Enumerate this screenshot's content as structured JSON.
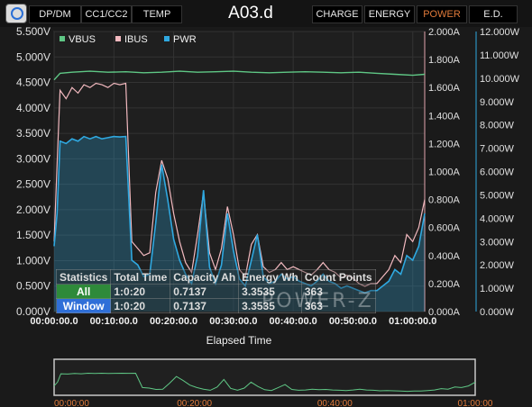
{
  "tabs_left": [
    "DP/DM",
    "CC1/CC2",
    "TEMP"
  ],
  "title": "A03.d",
  "tabs_right": [
    "CHARGE",
    "ENERGY",
    "POWER",
    "E.D."
  ],
  "active_tab": "POWER",
  "colors": {
    "vbus": "#5fc785",
    "ibus": "#f2b9bf",
    "pwr": "#2fa8e0",
    "accent": "#e07a3a"
  },
  "chart_data": {
    "type": "line",
    "xlabel": "Elapsed Time",
    "x_ticks": [
      "00:00:00.0",
      "00:10:00.0",
      "00:20:00.0",
      "00:30:00.0",
      "00:40:00.0",
      "00:50:00.0",
      "01:00:00.0"
    ],
    "y_left_ticks": [
      "0.000V",
      "0.500V",
      "1.000V",
      "1.500V",
      "2.000V",
      "2.500V",
      "3.000V",
      "3.500V",
      "4.000V",
      "4.500V",
      "5.000V",
      "5.500V"
    ],
    "y_mid_ticks": [
      "0.000A",
      "0.200A",
      "0.400A",
      "0.600A",
      "0.800A",
      "1.000A",
      "1.200A",
      "1.400A",
      "1.600A",
      "1.800A",
      "2.000A"
    ],
    "y_right_ticks": [
      "0.000W",
      "1.000W",
      "2.000W",
      "3.000W",
      "4.000W",
      "5.000W",
      "6.000W",
      "7.000W",
      "8.000W",
      "9.000W",
      "10.000W",
      "11.000W",
      "12.000W"
    ],
    "ylim_left": [
      0,
      5.5
    ],
    "ylim_mid": [
      0,
      2.0
    ],
    "ylim_right": [
      0,
      12
    ],
    "xlim_min": [
      0,
      62
    ],
    "legend": [
      "VBUS",
      "IBUS",
      "PWR"
    ],
    "series": [
      {
        "name": "VBUS",
        "axis": "left",
        "x": [
          0,
          1,
          3,
          6,
          9,
          12,
          15,
          18,
          21,
          24,
          27,
          30,
          33,
          36,
          39,
          42,
          45,
          48,
          51,
          54,
          57,
          60,
          62
        ],
        "y": [
          4.55,
          4.68,
          4.7,
          4.72,
          4.7,
          4.71,
          4.69,
          4.7,
          4.72,
          4.7,
          4.71,
          4.72,
          4.7,
          4.69,
          4.7,
          4.71,
          4.7,
          4.69,
          4.7,
          4.68,
          4.66,
          4.64,
          4.66
        ]
      },
      {
        "name": "IBUS",
        "axis": "mid",
        "x": [
          0,
          0.5,
          1,
          2,
          3,
          4,
          5,
          6,
          7,
          8,
          9,
          10,
          11,
          12,
          13,
          14,
          15,
          16,
          17,
          18,
          19,
          20,
          21,
          22,
          23,
          24,
          25,
          26,
          27,
          28,
          29,
          30,
          31,
          32,
          33,
          34,
          35,
          36,
          37,
          38,
          39,
          40,
          41,
          42,
          43,
          44,
          45,
          46,
          47,
          48,
          49,
          50,
          51,
          52,
          53,
          54,
          55,
          56,
          57,
          58,
          59,
          60,
          61,
          62
        ],
        "y": [
          0.5,
          1.05,
          1.58,
          1.52,
          1.6,
          1.56,
          1.62,
          1.6,
          1.63,
          1.62,
          1.6,
          1.63,
          1.62,
          1.63,
          0.5,
          0.45,
          0.4,
          0.42,
          0.85,
          1.08,
          0.95,
          0.7,
          0.5,
          0.35,
          0.28,
          0.55,
          0.85,
          0.42,
          0.3,
          0.45,
          0.75,
          0.55,
          0.3,
          0.25,
          0.48,
          0.55,
          0.32,
          0.28,
          0.3,
          0.35,
          0.3,
          0.32,
          0.3,
          0.28,
          0.26,
          0.3,
          0.35,
          0.3,
          0.28,
          0.24,
          0.26,
          0.24,
          0.2,
          0.18,
          0.2,
          0.2,
          0.25,
          0.3,
          0.4,
          0.35,
          0.55,
          0.5,
          0.6,
          0.8
        ]
      },
      {
        "name": "PWR",
        "axis": "right",
        "x": [
          0,
          0.5,
          1,
          2,
          3,
          4,
          5,
          6,
          7,
          8,
          9,
          10,
          11,
          12,
          13,
          14,
          15,
          16,
          17,
          18,
          19,
          20,
          21,
          22,
          23,
          24,
          25,
          26,
          27,
          28,
          29,
          30,
          31,
          32,
          33,
          34,
          35,
          36,
          37,
          38,
          39,
          40,
          41,
          42,
          43,
          44,
          45,
          46,
          47,
          48,
          49,
          50,
          51,
          52,
          53,
          54,
          55,
          56,
          57,
          58,
          59,
          60,
          61,
          62
        ],
        "y": [
          2.8,
          4.2,
          7.3,
          7.2,
          7.4,
          7.3,
          7.5,
          7.4,
          7.5,
          7.4,
          7.45,
          7.5,
          7.48,
          7.5,
          2.2,
          2.0,
          1.5,
          1.6,
          3.8,
          6.3,
          4.8,
          3.1,
          2.2,
          1.6,
          1.2,
          2.4,
          5.2,
          1.9,
          1.2,
          2.0,
          4.2,
          2.6,
          1.4,
          1.1,
          2.2,
          3.3,
          1.5,
          1.2,
          1.3,
          1.6,
          1.4,
          1.5,
          1.3,
          1.2,
          1.1,
          1.3,
          1.6,
          1.3,
          1.2,
          1.0,
          1.1,
          1.0,
          0.9,
          0.8,
          0.9,
          0.9,
          1.1,
          1.3,
          1.8,
          1.6,
          2.4,
          2.2,
          2.8,
          4.2
        ]
      }
    ]
  },
  "stats_table": {
    "headers": [
      "Statistics",
      "Total Time",
      "Capacity Ah",
      "Energy Wh",
      "Count",
      "Points"
    ],
    "rows": [
      {
        "label": "All",
        "total_time": "1:0:20",
        "capacity": "0.7137",
        "energy": "3.3535",
        "points": "363"
      },
      {
        "label": "Window",
        "total_time": "1:0:20",
        "capacity": "0.7137",
        "energy": "3.3535",
        "points": "363"
      }
    ]
  },
  "watermark": "POWER-Z",
  "overview": {
    "ticks": [
      "00:00:00",
      "00:20:00",
      "00:40:00",
      "01:00:00"
    ]
  }
}
